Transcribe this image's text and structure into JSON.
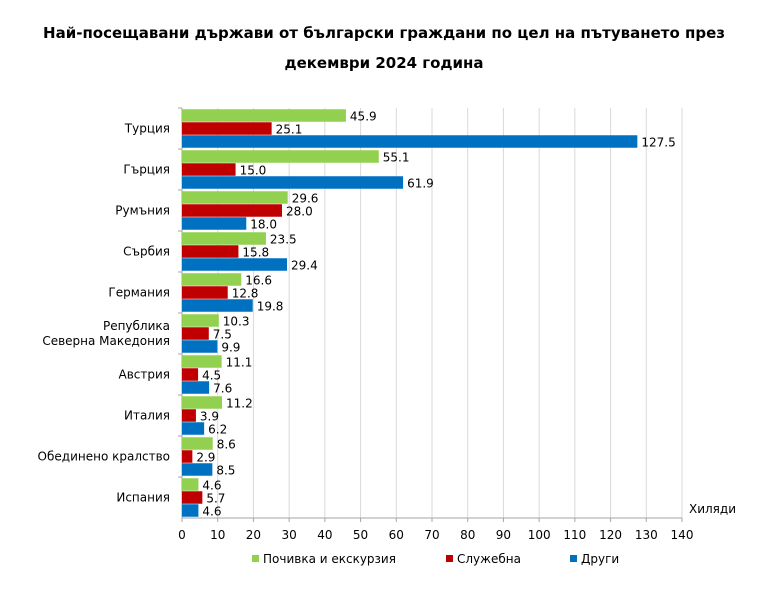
{
  "chart_data": {
    "type": "bar",
    "orientation": "horizontal",
    "title_lines": [
      "Най-посещавани държави от български граждани по цел на пътуването през",
      "декември 2024 година"
    ],
    "unit_label": "Хиляди",
    "categories": [
      [
        "Турция"
      ],
      [
        "Гърция"
      ],
      [
        "Румъния"
      ],
      [
        "Сърбия"
      ],
      [
        "Германия"
      ],
      [
        "Република",
        "Северна Македония"
      ],
      [
        "Австрия"
      ],
      [
        "Италия"
      ],
      [
        "Обединено кралство"
      ],
      [
        "Испания"
      ]
    ],
    "series": [
      {
        "name": "Почивка и екскурзия",
        "color": "#92d050",
        "values": [
          45.9,
          55.1,
          29.6,
          23.5,
          16.6,
          10.3,
          11.1,
          11.2,
          8.6,
          4.6
        ]
      },
      {
        "name": "Служебна",
        "color": "#c00000",
        "values": [
          25.1,
          15.0,
          28.0,
          15.8,
          12.8,
          7.5,
          4.5,
          3.9,
          2.9,
          5.7
        ]
      },
      {
        "name": "Други",
        "color": "#0070c0",
        "values": [
          127.5,
          61.9,
          18.0,
          29.4,
          19.8,
          9.9,
          7.6,
          6.2,
          8.5,
          4.6
        ]
      }
    ],
    "xlim": [
      0,
      140
    ],
    "xticks": [
      0,
      10,
      20,
      30,
      40,
      50,
      60,
      70,
      80,
      90,
      100,
      110,
      120,
      130,
      140
    ],
    "grid": true,
    "legend_position": "bottom"
  }
}
